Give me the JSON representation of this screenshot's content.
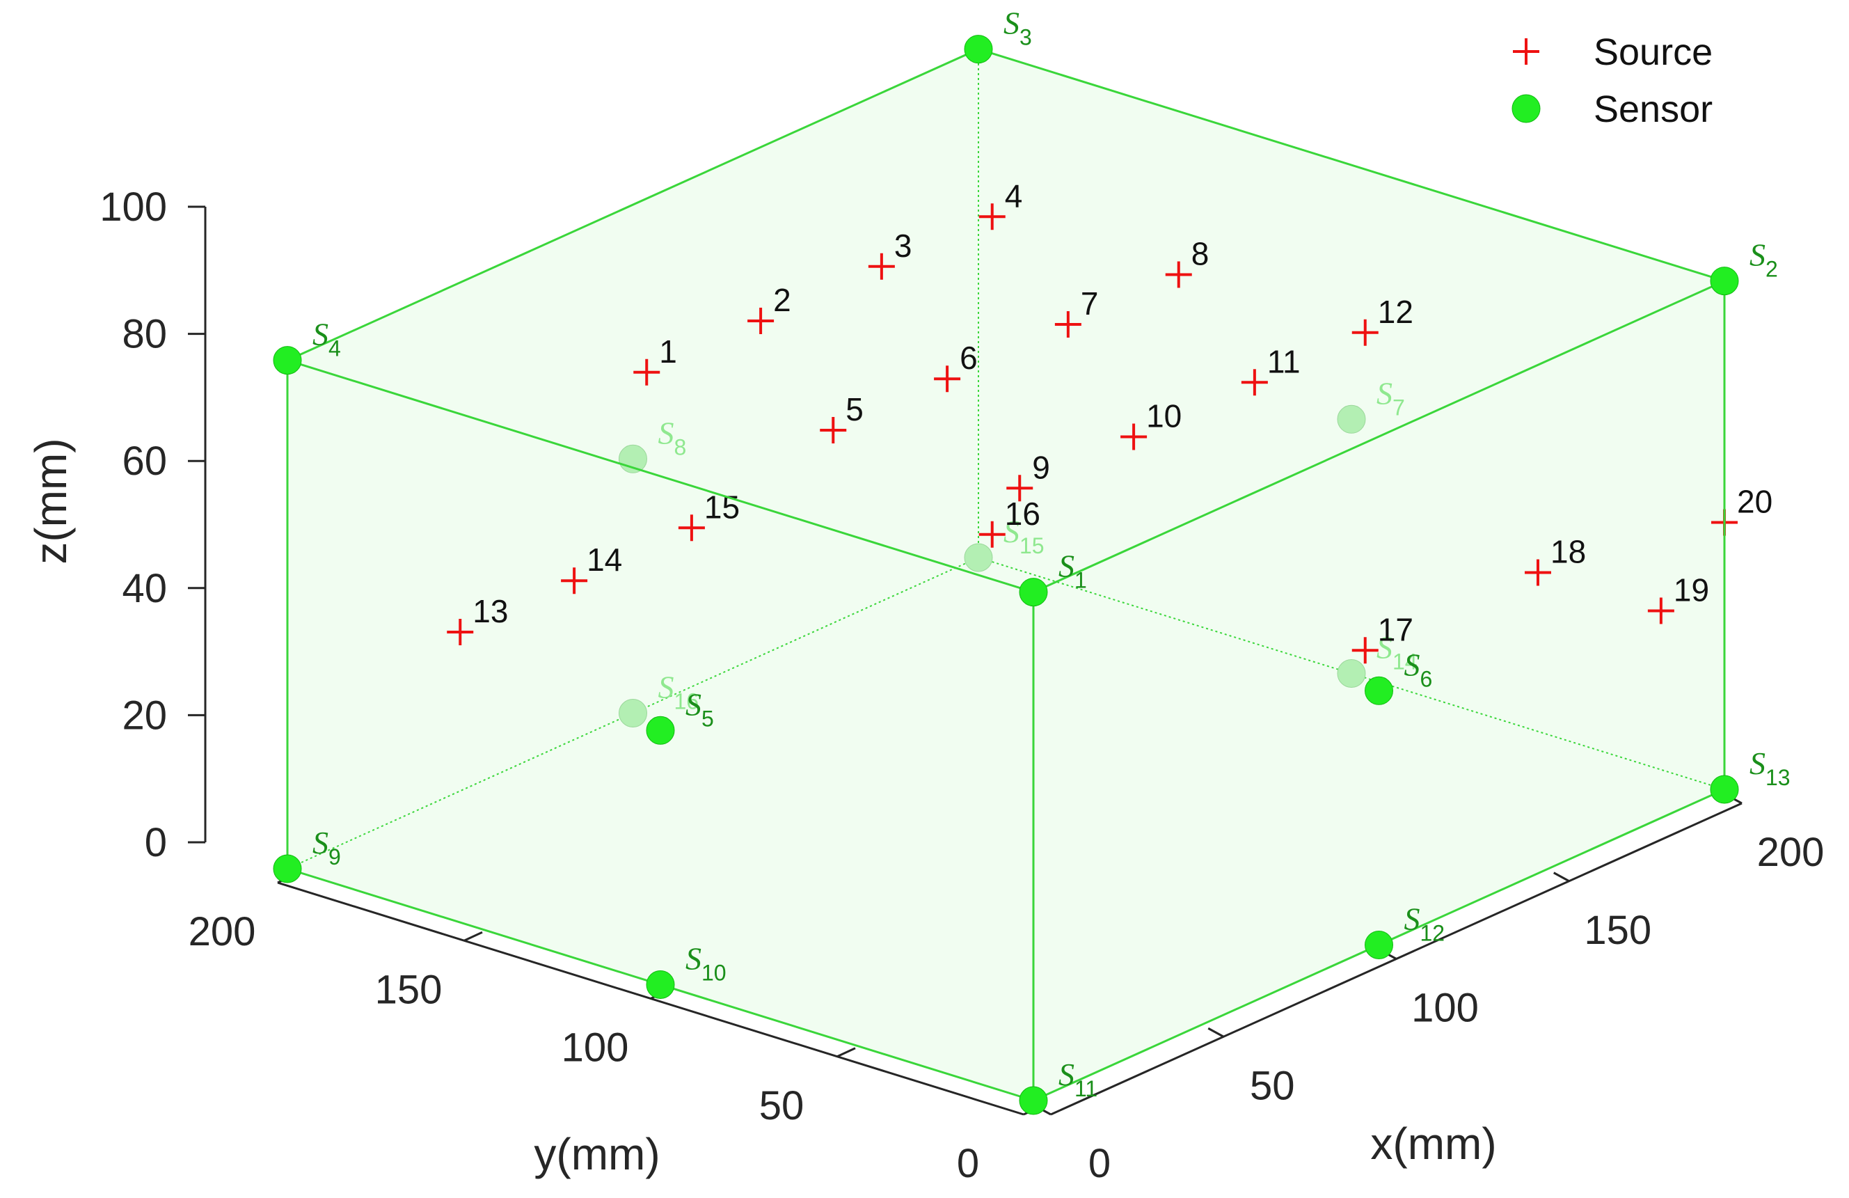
{
  "chart_data": {
    "type": "scatter",
    "projection": "3d",
    "axes": {
      "x": {
        "label": "x(mm)",
        "range": [
          0,
          200
        ],
        "ticks": [
          0,
          50,
          100,
          150,
          200
        ]
      },
      "y": {
        "label": "y(mm)",
        "range": [
          0,
          200
        ],
        "ticks": [
          0,
          50,
          100,
          150,
          200
        ]
      },
      "z": {
        "label": "z(mm)",
        "range": [
          0,
          100
        ],
        "ticks": [
          0,
          20,
          40,
          60,
          80,
          100
        ]
      }
    },
    "grid": false,
    "legend": {
      "placement": "top-right",
      "entries": [
        {
          "name": "Source",
          "marker": "plus",
          "color": "#ee1111"
        },
        {
          "name": "Sensor",
          "marker": "circle",
          "color": "#22ee22"
        }
      ]
    },
    "series": [
      {
        "name": "Source",
        "color": "#ee1111",
        "points": [
          {
            "label": "1",
            "x": 50,
            "y": 150,
            "z": 75
          },
          {
            "label": "2",
            "x": 83,
            "y": 150,
            "z": 75
          },
          {
            "label": "3",
            "x": 118,
            "y": 150,
            "z": 75
          },
          {
            "label": "4",
            "x": 150,
            "y": 150,
            "z": 75
          },
          {
            "label": "5",
            "x": 50,
            "y": 100,
            "z": 75
          },
          {
            "label": "6",
            "x": 83,
            "y": 100,
            "z": 75
          },
          {
            "label": "7",
            "x": 118,
            "y": 100,
            "z": 75
          },
          {
            "label": "8",
            "x": 150,
            "y": 100,
            "z": 75
          },
          {
            "label": "9",
            "x": 50,
            "y": 50,
            "z": 75
          },
          {
            "label": "10",
            "x": 83,
            "y": 50,
            "z": 75
          },
          {
            "label": "11",
            "x": 118,
            "y": 50,
            "z": 75
          },
          {
            "label": "12",
            "x": 150,
            "y": 50,
            "z": 75
          },
          {
            "label": "13",
            "x": 50,
            "y": 200,
            "z": 25
          },
          {
            "label": "14",
            "x": 83,
            "y": 200,
            "z": 25
          },
          {
            "label": "15",
            "x": 117,
            "y": 200,
            "z": 25
          },
          {
            "label": "16",
            "x": 150,
            "y": 150,
            "z": 25
          },
          {
            "label": "17",
            "x": 150,
            "y": 50,
            "z": 25
          },
          {
            "label": "18",
            "x": 200,
            "y": 50,
            "z": 25
          },
          {
            "label": "19",
            "x": 200,
            "y": 17,
            "z": 25
          },
          {
            "label": "20",
            "x": 200,
            "y": 0,
            "z": 42
          }
        ]
      },
      {
        "name": "Sensor",
        "color": "#22ee22",
        "points": [
          {
            "label": "S",
            "sub": "1",
            "x": 0,
            "y": 0,
            "z": 80,
            "hidden": false
          },
          {
            "label": "S",
            "sub": "2",
            "x": 200,
            "y": 0,
            "z": 80,
            "hidden": false
          },
          {
            "label": "S",
            "sub": "3",
            "x": 200,
            "y": 200,
            "z": 80,
            "hidden": false
          },
          {
            "label": "S",
            "sub": "4",
            "x": 0,
            "y": 200,
            "z": 80,
            "hidden": false
          },
          {
            "label": "S",
            "sub": "5",
            "x": 0,
            "y": 100,
            "z": 40,
            "hidden": false
          },
          {
            "label": "S",
            "sub": "6",
            "x": 100,
            "y": 0,
            "z": 40,
            "hidden": false
          },
          {
            "label": "S",
            "sub": "7",
            "x": 200,
            "y": 100,
            "z": 40,
            "hidden": true
          },
          {
            "label": "S",
            "sub": "8",
            "x": 100,
            "y": 200,
            "z": 40,
            "hidden": true
          },
          {
            "label": "S",
            "sub": "9",
            "x": 0,
            "y": 200,
            "z": 0,
            "hidden": false
          },
          {
            "label": "S",
            "sub": "10",
            "x": 0,
            "y": 100,
            "z": 0,
            "hidden": false
          },
          {
            "label": "S",
            "sub": "11",
            "x": 0,
            "y": 0,
            "z": 0,
            "hidden": false
          },
          {
            "label": "S",
            "sub": "12",
            "x": 100,
            "y": 0,
            "z": 0,
            "hidden": false
          },
          {
            "label": "S",
            "sub": "13",
            "x": 200,
            "y": 0,
            "z": 0,
            "hidden": false
          },
          {
            "label": "S",
            "sub": "14",
            "x": 200,
            "y": 100,
            "z": 0,
            "hidden": true
          },
          {
            "label": "S",
            "sub": "15",
            "x": 200,
            "y": 200,
            "z": 0,
            "hidden": true
          },
          {
            "label": "S",
            "sub": "16",
            "x": 100,
            "y": 200,
            "z": 0,
            "hidden": true
          }
        ]
      }
    ]
  }
}
